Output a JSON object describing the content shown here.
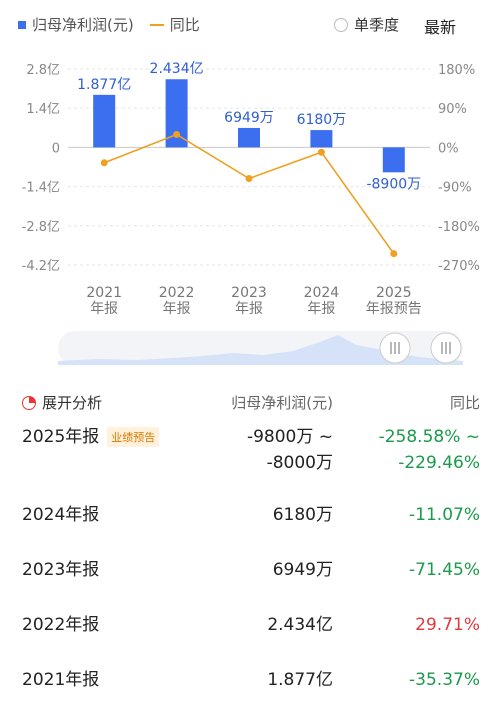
{
  "legend": {
    "bar_label": "归母净利润(元)",
    "line_label": "同比",
    "bar_color": "#3b6ff0",
    "line_color": "#f0a020"
  },
  "controls": {
    "quarter_toggle": "单季度",
    "latest": "最新"
  },
  "chart_data": {
    "type": "bar",
    "categories": [
      "2021 年报",
      "2022 年报",
      "2023 年报",
      "2024 年报",
      "2025 年报预告"
    ],
    "x_tick_lines": [
      [
        "2021",
        "年报"
      ],
      [
        "2022",
        "年报"
      ],
      [
        "2023",
        "年报"
      ],
      [
        "2024",
        "年报"
      ],
      [
        "2025",
        "年报预告"
      ]
    ],
    "series": [
      {
        "name": "归母净利润(元)",
        "type": "bar",
        "values": [
          187700000,
          243400000,
          69490000,
          61800000,
          -89000000
        ],
        "labels": [
          "1.877亿",
          "2.434亿",
          "6949万",
          "6180万",
          "-8900万"
        ]
      },
      {
        "name": "同比",
        "type": "line",
        "values": [
          -35.37,
          29.71,
          -71.45,
          -11.07,
          -244.0
        ]
      }
    ],
    "left_axis": {
      "ticks": [
        280000000,
        140000000,
        0,
        -140000000,
        -280000000,
        -420000000
      ],
      "tick_labels": [
        "2.8亿",
        "1.4亿",
        "0",
        "-1.4亿",
        "-2.8亿",
        "-4.2亿"
      ],
      "ylim": [
        -420000000,
        280000000
      ]
    },
    "right_axis": {
      "ticks": [
        180,
        90,
        0,
        -90,
        -180,
        -270
      ],
      "tick_labels": [
        "180%",
        "90%",
        "0%",
        "-90%",
        "-180%",
        "-270%"
      ],
      "ylim": [
        -270,
        180
      ]
    },
    "grid": true
  },
  "table": {
    "header": {
      "title": "展开分析",
      "col_value": "归母净利润(元)",
      "col_yoy": "同比"
    },
    "rows": [
      {
        "year": "2025年报",
        "badge": "业绩预告",
        "value_lines": [
          "-9800万 ~",
          "-8000万"
        ],
        "yoy_lines": [
          "-258.58% ~",
          "-229.46%"
        ],
        "yoy_color": "green"
      },
      {
        "year": "2024年报",
        "value_lines": [
          "6180万"
        ],
        "yoy_lines": [
          "-11.07%"
        ],
        "yoy_color": "green"
      },
      {
        "year": "2023年报",
        "value_lines": [
          "6949万"
        ],
        "yoy_lines": [
          "-71.45%"
        ],
        "yoy_color": "green"
      },
      {
        "year": "2022年报",
        "value_lines": [
          "2.434亿"
        ],
        "yoy_lines": [
          "29.71%"
        ],
        "yoy_color": "red"
      },
      {
        "year": "2021年报",
        "value_lines": [
          "1.877亿"
        ],
        "yoy_lines": [
          "-35.37%"
        ],
        "yoy_color": "green"
      }
    ]
  }
}
